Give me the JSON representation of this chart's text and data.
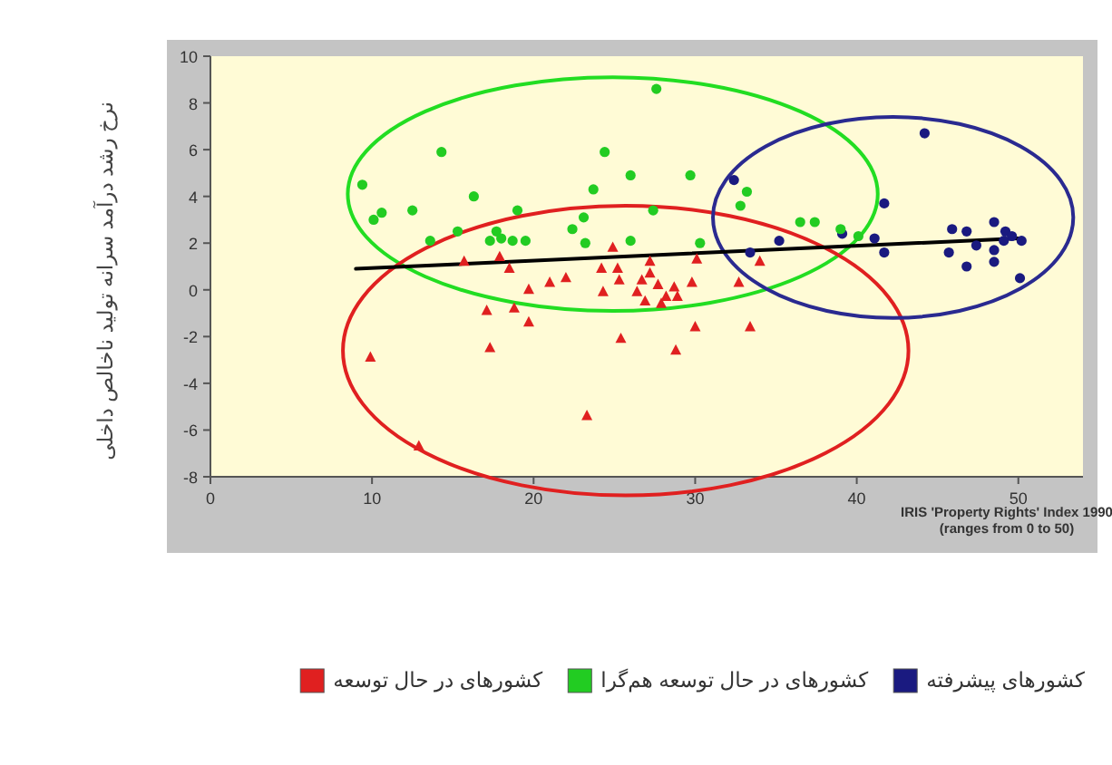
{
  "chart_data": {
    "type": "scatter",
    "ylabel": "نرخ رشد درآمد سرانه تولید ناخالص داخلی",
    "xlabel": "IRIS 'Property Rights' Index 1990\n(ranges from 0 to 50)",
    "xlim": [
      0,
      54
    ],
    "xticks": [
      0,
      10,
      20,
      30,
      40,
      50
    ],
    "ylim": [
      -8,
      10
    ],
    "yticks": [
      -8,
      -6,
      -4,
      -2,
      0,
      2,
      4,
      6,
      8,
      10
    ],
    "grid": false,
    "legend": "bottom",
    "series": [
      {
        "type": "line",
        "color": "#000000",
        "x": [
          9,
          50
        ],
        "values": [
          0.9,
          2.2
        ]
      },
      {
        "name": "کشورهای پیشرفته",
        "color": "#1a1a80",
        "marker": "circle",
        "x": [
          44.2,
          32.4,
          41.7,
          35.2,
          33.4,
          39.1,
          41.1,
          41.7,
          45.9,
          46.8,
          48.5,
          49.2,
          50.2,
          45.7,
          47.4,
          48.5,
          49.1,
          49.6,
          46.8,
          48.5,
          50.1
        ],
        "values": [
          6.7,
          4.7,
          3.7,
          2.1,
          1.6,
          2.4,
          2.2,
          1.6,
          2.6,
          2.5,
          2.9,
          2.5,
          2.1,
          1.6,
          1.9,
          1.7,
          2.1,
          2.3,
          1.0,
          1.2,
          0.5
        ]
      },
      {
        "name": "کشورهای در حال توسعه هم‌گرا",
        "color": "#22cc22",
        "marker": "circle",
        "x": [
          9.4,
          10.1,
          10.6,
          12.5,
          14.3,
          13.6,
          15.3,
          16.3,
          19.0,
          17.3,
          17.7,
          18.0,
          18.7,
          19.5,
          22.4,
          27.6,
          24.4,
          26.0,
          29.7,
          23.7,
          27.4,
          23.1,
          23.2,
          26.0,
          30.3,
          33.2,
          32.8,
          36.5,
          37.4,
          39.0,
          40.1
        ],
        "values": [
          4.5,
          3.0,
          3.3,
          3.4,
          5.9,
          2.1,
          2.5,
          4.0,
          3.4,
          2.1,
          2.5,
          2.2,
          2.1,
          2.1,
          2.6,
          8.6,
          5.9,
          4.9,
          4.9,
          4.3,
          3.4,
          3.1,
          2.0,
          2.1,
          2.0,
          4.2,
          3.6,
          2.9,
          2.9,
          2.6,
          2.3
        ]
      },
      {
        "name": "کشورهای در حال توسعه",
        "color": "#e02020",
        "marker": "triangle",
        "x": [
          9.9,
          12.9,
          15.7,
          17.1,
          17.3,
          17.9,
          18.5,
          18.8,
          19.7,
          19.7,
          21.0,
          22.0,
          24.9,
          24.2,
          25.2,
          24.3,
          25.3,
          26.4,
          26.7,
          27.2,
          27.2,
          27.7,
          26.9,
          27.9,
          28.2,
          28.7,
          28.9,
          25.4,
          30.0,
          28.8,
          29.8,
          30.1,
          32.7,
          34.0,
          33.4,
          23.3
        ],
        "values": [
          -2.9,
          -6.7,
          1.2,
          -0.9,
          -2.5,
          1.4,
          0.9,
          -0.8,
          0.0,
          -1.4,
          0.3,
          0.5,
          1.8,
          0.9,
          0.9,
          -0.1,
          0.4,
          -0.1,
          0.4,
          1.2,
          0.7,
          0.2,
          -0.5,
          -0.6,
          -0.3,
          0.1,
          -0.3,
          -2.1,
          -1.6,
          -2.6,
          0.3,
          1.3,
          0.3,
          1.2,
          -1.6,
          -5.4
        ]
      }
    ]
  }
}
